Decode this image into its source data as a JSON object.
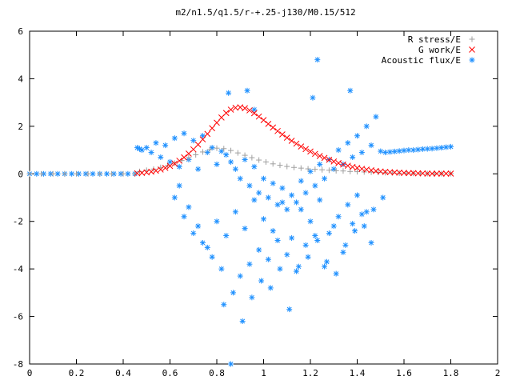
{
  "chart_data": {
    "type": "scatter",
    "title": "m2/n1.5/q1.5/r-+.25-j130/M0.15/512",
    "xlabel": "",
    "ylabel": "",
    "xlim": [
      0,
      2
    ],
    "ylim": [
      -8,
      6
    ],
    "x_ticks": [
      0,
      0.2,
      0.4,
      0.6,
      0.8,
      1,
      1.2,
      1.4,
      1.6,
      1.8,
      2
    ],
    "x_tick_labels": [
      "0",
      "0.2",
      "0.4",
      "0.6",
      "0.8",
      "1",
      "1.2",
      "1.4",
      "1.6",
      "1.8",
      "2"
    ],
    "y_ticks": [
      -8,
      -6,
      -4,
      -2,
      0,
      2,
      4,
      6
    ],
    "y_tick_labels": [
      "-8",
      "-6",
      "-4",
      "-2",
      "0",
      "2",
      "4",
      "6"
    ],
    "grid": false,
    "legend_position": "top-right",
    "series": [
      {
        "name": "R stress/E",
        "marker": "plus",
        "color": "#a0a0a0",
        "x": [
          0.0,
          0.05,
          0.1,
          0.15,
          0.2,
          0.25,
          0.3,
          0.35,
          0.4,
          0.45,
          0.47,
          0.5,
          0.53,
          0.56,
          0.59,
          0.62,
          0.65,
          0.68,
          0.71,
          0.74,
          0.77,
          0.8,
          0.83,
          0.86,
          0.89,
          0.92,
          0.95,
          0.98,
          1.01,
          1.04,
          1.07,
          1.1,
          1.13,
          1.16,
          1.19,
          1.22,
          1.25,
          1.28,
          1.31,
          1.34,
          1.37,
          1.4,
          1.43,
          1.46,
          1.49,
          1.52,
          1.55,
          1.58,
          1.61,
          1.64,
          1.67,
          1.7,
          1.73,
          1.76,
          1.8
        ],
        "y": [
          0.0,
          0.0,
          0.0,
          0.0,
          0.0,
          0.0,
          0.0,
          0.0,
          0.0,
          0.0,
          0.1,
          0.15,
          0.2,
          0.27,
          0.35,
          0.45,
          0.56,
          0.68,
          0.8,
          0.92,
          1.02,
          1.08,
          1.06,
          0.98,
          0.88,
          0.78,
          0.68,
          0.58,
          0.5,
          0.42,
          0.36,
          0.31,
          0.27,
          0.24,
          0.21,
          0.19,
          0.17,
          0.15,
          0.13,
          0.12,
          0.1,
          0.09,
          0.08,
          0.07,
          0.06,
          0.05,
          0.04,
          0.03,
          0.03,
          0.02,
          0.02,
          0.01,
          0.01,
          0.01,
          0.01
        ]
      },
      {
        "name": "G work/E",
        "marker": "cross",
        "color": "#ff0000",
        "x": [
          0.46,
          0.48,
          0.5,
          0.52,
          0.54,
          0.56,
          0.58,
          0.6,
          0.62,
          0.64,
          0.66,
          0.68,
          0.7,
          0.72,
          0.74,
          0.76,
          0.78,
          0.8,
          0.82,
          0.84,
          0.86,
          0.88,
          0.9,
          0.92,
          0.94,
          0.96,
          0.98,
          1.0,
          1.02,
          1.04,
          1.06,
          1.08,
          1.1,
          1.12,
          1.14,
          1.16,
          1.18,
          1.2,
          1.22,
          1.24,
          1.26,
          1.28,
          1.3,
          1.32,
          1.34,
          1.36,
          1.38,
          1.4,
          1.42,
          1.44,
          1.46,
          1.48,
          1.5,
          1.52,
          1.54,
          1.56,
          1.58,
          1.6,
          1.62,
          1.64,
          1.66,
          1.68,
          1.7,
          1.72,
          1.74,
          1.76,
          1.78,
          1.8
        ],
        "y": [
          0.02,
          0.04,
          0.06,
          0.09,
          0.13,
          0.18,
          0.25,
          0.33,
          0.43,
          0.55,
          0.69,
          0.85,
          1.03,
          1.23,
          1.45,
          1.68,
          1.92,
          2.15,
          2.37,
          2.56,
          2.7,
          2.78,
          2.8,
          2.76,
          2.67,
          2.55,
          2.41,
          2.26,
          2.1,
          1.95,
          1.8,
          1.66,
          1.52,
          1.39,
          1.27,
          1.15,
          1.04,
          0.94,
          0.84,
          0.75,
          0.67,
          0.59,
          0.52,
          0.45,
          0.39,
          0.34,
          0.29,
          0.25,
          0.21,
          0.18,
          0.15,
          0.12,
          0.1,
          0.08,
          0.07,
          0.06,
          0.05,
          0.04,
          0.03,
          0.03,
          0.02,
          0.02,
          0.01,
          0.01,
          0.01,
          0.01,
          0.01,
          0.01
        ]
      },
      {
        "name": "Acoustic flux/E",
        "marker": "star",
        "color": "#1e90ff",
        "x": [
          0.0,
          0.03,
          0.06,
          0.09,
          0.12,
          0.15,
          0.18,
          0.21,
          0.24,
          0.27,
          0.3,
          0.33,
          0.36,
          0.39,
          0.42,
          0.45,
          0.46,
          0.47,
          0.48,
          0.5,
          0.52,
          0.54,
          0.56,
          0.58,
          0.6,
          0.62,
          0.64,
          0.66,
          0.68,
          0.7,
          0.72,
          0.74,
          0.76,
          0.78,
          0.8,
          0.82,
          0.84,
          0.86,
          0.88,
          0.9,
          0.92,
          0.94,
          0.96,
          0.98,
          1.0,
          1.02,
          1.04,
          1.06,
          1.08,
          1.1,
          1.12,
          1.14,
          1.16,
          1.18,
          1.2,
          1.22,
          1.24,
          1.26,
          1.28,
          1.3,
          1.32,
          1.34,
          1.36,
          1.38,
          1.4,
          1.42,
          1.44,
          1.46,
          1.48,
          1.5,
          1.52,
          1.54,
          1.56,
          1.58,
          1.6,
          1.62,
          1.64,
          1.66,
          1.68,
          1.7,
          1.72,
          1.74,
          1.76,
          1.78,
          1.8,
          0.86,
          0.62,
          0.66,
          0.7,
          0.74,
          0.78,
          0.82,
          0.9,
          0.94,
          0.98,
          1.02,
          1.06,
          1.1,
          1.14,
          1.18,
          1.22,
          1.26,
          1.3,
          1.34,
          1.38,
          1.42,
          1.46,
          0.64,
          0.68,
          0.72,
          0.76,
          0.8,
          0.84,
          0.88,
          0.92,
          0.96,
          1.0,
          1.04,
          1.08,
          1.12,
          1.16,
          1.2,
          1.24,
          1.28,
          1.32,
          1.36,
          1.4,
          1.44,
          0.83,
          0.87,
          0.91,
          0.95,
          0.99,
          1.03,
          1.07,
          1.11,
          1.15,
          1.19,
          1.23,
          1.27,
          1.31,
          1.35,
          1.39,
          1.43,
          1.47,
          1.51,
          0.85,
          0.93,
          0.96,
          1.21,
          1.23,
          1.37
        ],
        "y": [
          0.0,
          0.0,
          0.0,
          0.0,
          0.0,
          0.0,
          0.0,
          0.0,
          0.0,
          0.0,
          0.0,
          0.0,
          0.0,
          0.0,
          0.0,
          0.0,
          1.1,
          1.05,
          1.0,
          1.1,
          0.9,
          1.3,
          0.7,
          1.2,
          0.5,
          1.5,
          0.3,
          1.7,
          0.6,
          1.4,
          0.2,
          1.6,
          0.9,
          1.1,
          0.4,
          0.95,
          0.8,
          0.5,
          0.2,
          -0.2,
          0.6,
          -0.5,
          0.3,
          -0.8,
          -0.2,
          -1.0,
          -0.4,
          -1.3,
          -0.6,
          -1.5,
          -0.9,
          -1.2,
          -0.3,
          -0.8,
          0.1,
          -0.5,
          0.4,
          -0.2,
          0.6,
          0.2,
          1.0,
          0.4,
          1.3,
          0.7,
          1.6,
          0.9,
          2.0,
          1.2,
          2.4,
          0.95,
          0.9,
          0.92,
          0.94,
          0.96,
          0.98,
          1.0,
          1.0,
          1.02,
          1.04,
          1.05,
          1.06,
          1.08,
          1.1,
          1.12,
          1.14,
          -8.0,
          -1.0,
          -1.8,
          -2.5,
          -2.9,
          -3.5,
          -4.0,
          -4.3,
          -3.8,
          -3.2,
          -3.6,
          -2.8,
          -3.4,
          -4.1,
          -3.0,
          -2.6,
          -3.9,
          -2.2,
          -3.3,
          -2.1,
          -1.7,
          -2.9,
          -0.5,
          -1.4,
          -2.2,
          -3.1,
          -2.0,
          -2.6,
          -1.6,
          -2.3,
          -1.1,
          -1.9,
          -2.4,
          -1.2,
          -2.7,
          -1.5,
          -2.0,
          -1.1,
          -2.5,
          -1.8,
          -1.3,
          -0.9,
          -1.6,
          -5.5,
          -5.0,
          -6.2,
          -5.2,
          -4.5,
          -4.8,
          -4.0,
          -5.7,
          -3.9,
          -3.5,
          -2.8,
          -3.7,
          -4.2,
          -3.0,
          -2.4,
          -2.2,
          -1.5,
          -1.0,
          3.4,
          3.5,
          2.7,
          3.2,
          4.8,
          3.5
        ]
      }
    ]
  }
}
